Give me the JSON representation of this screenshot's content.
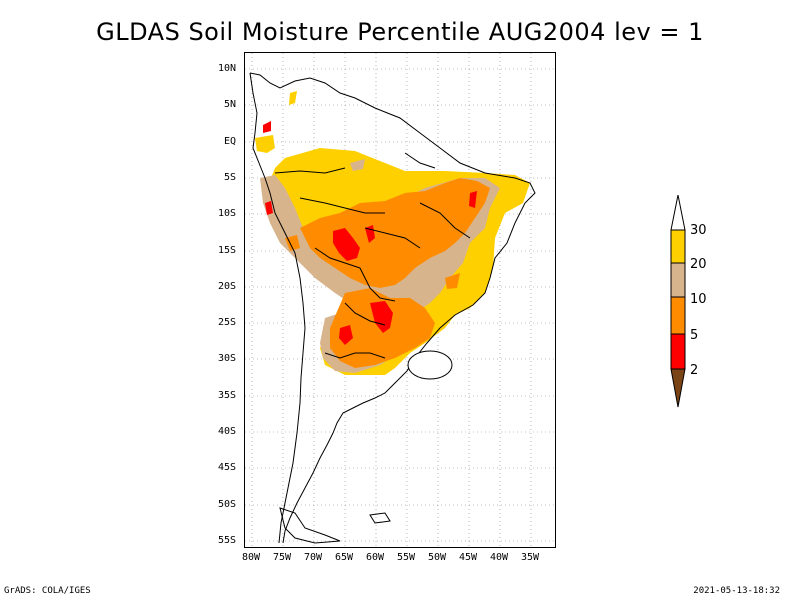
{
  "title": "GLDAS Soil Moisture Percentile AUG2004 lev = 1",
  "footer": {
    "left": "GrADS: COLA/IGES",
    "right": "2021-05-13-18:32"
  },
  "map": {
    "lat_labels": [
      "10N",
      "5N",
      "EQ",
      "5S",
      "10S",
      "15S",
      "20S",
      "25S",
      "30S",
      "35S",
      "40S",
      "45S",
      "50S",
      "55S"
    ],
    "lon_labels": [
      "80W",
      "75W",
      "70W",
      "65W",
      "60W",
      "55W",
      "50W",
      "45W",
      "40W",
      "35W"
    ],
    "gridlines": "dotted"
  },
  "legend": {
    "labels": [
      "30",
      "20",
      "10",
      "5",
      "2"
    ],
    "colors": {
      "above_30": "#ffffff",
      "20_30": "#ffd000",
      "10_20": "#d8b48c",
      "5_10": "#ff8c00",
      "2_5": "#ff0000",
      "below_2": "#7a4416"
    }
  },
  "colors": {
    "land_bg": "#ffffff",
    "border": "#000000"
  }
}
